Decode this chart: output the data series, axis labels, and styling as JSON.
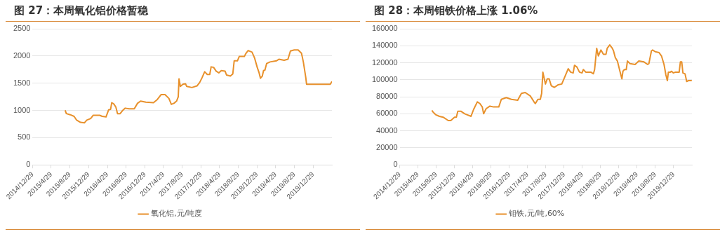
{
  "chart_data": [
    {
      "type": "line",
      "title": "图 27：本周氧化铝价格暂稳",
      "x": [
        "2015-07-29",
        "2015-08-06",
        "2015-08-31",
        "2015-09-25",
        "2015-10-12",
        "2015-11-06",
        "2015-12-01",
        "2015-12-17",
        "2016-01-11",
        "2016-01-28",
        "2016-03-10",
        "2016-03-26",
        "2016-04-20",
        "2016-05-07",
        "2016-05-20",
        "2016-05-27",
        "2016-06-09",
        "2016-06-23",
        "2016-07-04",
        "2016-07-21",
        "2016-08-07",
        "2016-08-23",
        "2016-09-17",
        "2016-10-21",
        "2016-11-11",
        "2016-12-01",
        "2017-01-04",
        "2017-02-23",
        "2017-03-20",
        "2017-04-14",
        "2017-05-09",
        "2017-06-03",
        "2017-06-19",
        "2017-07-06",
        "2017-07-23",
        "2017-08-03",
        "2017-08-08",
        "2017-08-17",
        "2017-09-02",
        "2017-09-19",
        "2017-09-27",
        "2017-10-31",
        "2017-12-03",
        "2017-12-20",
        "2018-01-05",
        "2018-01-22",
        "2018-02-08",
        "2018-02-24",
        "2018-03-05",
        "2018-03-21",
        "2018-04-07",
        "2018-04-24",
        "2018-05-10",
        "2018-06-04",
        "2018-06-13",
        "2018-07-08",
        "2018-07-24",
        "2018-08-02",
        "2018-08-23",
        "2018-09-04",
        "2018-10-07",
        "2018-10-16",
        "2018-11-01",
        "2018-11-26",
        "2018-12-13",
        "2018-12-30",
        "2019-01-10",
        "2019-01-20",
        "2019-02-01",
        "2019-02-09",
        "2019-02-18",
        "2019-03-01",
        "2019-03-23",
        "2019-05-04",
        "2019-05-20",
        "2019-06-23",
        "2019-07-18",
        "2019-08-03",
        "2019-08-28",
        "2019-09-22",
        "2019-10-14",
        "2019-10-26",
        "2019-11-11",
        "2019-11-16",
        "2019-12-23",
        "2020-04-18",
        "2020-04-29"
      ],
      "series": [
        {
          "name": "氧化铝,元/吨度",
          "color": "#e8912c",
          "values": [
            1000,
            940,
            920,
            890,
            820,
            780,
            770,
            820,
            850,
            910,
            910,
            890,
            880,
            1010,
            1020,
            1140,
            1120,
            1060,
            940,
            940,
            1000,
            1040,
            1030,
            1030,
            1130,
            1170,
            1150,
            1140,
            1200,
            1290,
            1290,
            1220,
            1110,
            1130,
            1170,
            1250,
            1580,
            1440,
            1480,
            1490,
            1440,
            1420,
            1450,
            1510,
            1600,
            1710,
            1660,
            1660,
            1800,
            1790,
            1720,
            1690,
            1730,
            1720,
            1650,
            1630,
            1670,
            1910,
            1910,
            1990,
            1990,
            2040,
            2100,
            2070,
            1960,
            1790,
            1700,
            1590,
            1630,
            1730,
            1740,
            1860,
            1890,
            1910,
            1940,
            1920,
            1940,
            2090,
            2110,
            2110,
            2050,
            1890,
            1600,
            1480,
            1480,
            1480,
            1530
          ]
        }
      ],
      "xlim": [
        "2014-12-29",
        "2020-04-29"
      ],
      "xticks": [
        {
          "value": "2014-12-29",
          "label": "2014/12/29"
        },
        {
          "value": "2015-04-29",
          "label": "2015/4/29"
        },
        {
          "value": "2015-08-29",
          "label": "2015/8/29"
        },
        {
          "value": "2015-12-29",
          "label": "2015/12/29"
        },
        {
          "value": "2016-04-29",
          "label": "2016/4/29"
        },
        {
          "value": "2016-08-29",
          "label": "2016/8/29"
        },
        {
          "value": "2016-12-29",
          "label": "2016/12/29"
        },
        {
          "value": "2017-04-29",
          "label": "2017/4/29"
        },
        {
          "value": "2017-08-29",
          "label": "2017/8/29"
        },
        {
          "value": "2017-12-29",
          "label": "2017/12/29"
        },
        {
          "value": "2018-04-29",
          "label": "2018/4/29"
        },
        {
          "value": "2018-08-29",
          "label": "2018/8/29"
        },
        {
          "value": "2018-12-29",
          "label": "2018/12/29"
        },
        {
          "value": "2019-04-29",
          "label": "2019/4/29"
        },
        {
          "value": "2019-08-29",
          "label": "2019/8/29"
        },
        {
          "value": "2019-12-29",
          "label": "2019/12/29"
        }
      ],
      "ylim": [
        0,
        2500
      ],
      "yticks": [
        0,
        500,
        1000,
        1500,
        2000,
        2500
      ],
      "grid": "y",
      "legend": "bottom",
      "marker": "none",
      "line_style": "solid"
    },
    {
      "type": "line",
      "title": "图 28：本周钼铁价格上涨 1.06%",
      "x": [
        "2015-07-31",
        "2015-08-08",
        "2015-08-25",
        "2015-09-19",
        "2015-10-14",
        "2015-11-17",
        "2015-12-04",
        "2015-12-29",
        "2016-01-10",
        "2016-01-20",
        "2016-02-09",
        "2016-03-06",
        "2016-04-17",
        "2016-05-04",
        "2016-05-29",
        "2016-06-15",
        "2016-07-01",
        "2016-07-10",
        "2016-07-27",
        "2016-08-21",
        "2016-09-15",
        "2016-10-19",
        "2016-11-05",
        "2016-12-08",
        "2017-01-11",
        "2017-02-22",
        "2017-03-19",
        "2017-04-13",
        "2017-05-17",
        "2017-06-11",
        "2017-06-20",
        "2017-07-07",
        "2017-07-23",
        "2017-08-01",
        "2017-08-09",
        "2017-08-26",
        "2017-09-07",
        "2017-09-20",
        "2017-10-04",
        "2017-10-24",
        "2017-11-18",
        "2017-12-13",
        "2017-12-30",
        "2018-01-25",
        "2018-02-10",
        "2018-02-27",
        "2018-03-08",
        "2018-03-24",
        "2018-04-10",
        "2018-04-27",
        "2018-05-06",
        "2018-05-22",
        "2018-06-25",
        "2018-07-12",
        "2018-07-20",
        "2018-08-03",
        "2018-08-14",
        "2018-08-31",
        "2018-09-17",
        "2018-10-04",
        "2018-10-12",
        "2018-10-29",
        "2018-11-15",
        "2018-11-23",
        "2018-12-05",
        "2018-12-19",
        "2019-01-05",
        "2019-01-18",
        "2019-01-25",
        "2019-02-04",
        "2019-02-16",
        "2019-02-24",
        "2019-03-13",
        "2019-04-16",
        "2019-05-11",
        "2019-06-14",
        "2019-07-09",
        "2019-07-17",
        "2019-08-03",
        "2019-08-11",
        "2019-08-28",
        "2019-09-22",
        "2019-10-09",
        "2019-10-26",
        "2019-11-07",
        "2019-11-17",
        "2019-11-24",
        "2019-12-07",
        "2019-12-15",
        "2019-12-27",
        "2020-01-10",
        "2020-02-04",
        "2020-02-12",
        "2020-02-21",
        "2020-02-29",
        "2020-03-14",
        "2020-03-25",
        "2020-04-06",
        "2020-04-16",
        "2020-04-28"
      ],
      "series": [
        {
          "name": "钼铁,元/吨,60%",
          "color": "#e8912c",
          "values": [
            64000,
            62000,
            59000,
            57000,
            56000,
            52000,
            52000,
            56000,
            56000,
            63000,
            63000,
            60000,
            57000,
            65000,
            74000,
            72000,
            68000,
            60000,
            66000,
            69000,
            68000,
            68000,
            77000,
            79000,
            77000,
            76000,
            84000,
            85000,
            81000,
            74000,
            72000,
            77000,
            77000,
            84000,
            109000,
            95000,
            101000,
            101000,
            93000,
            91000,
            94000,
            95000,
            102000,
            113000,
            109000,
            108000,
            117000,
            115000,
            109000,
            108000,
            112000,
            109000,
            109000,
            107000,
            112000,
            137000,
            128000,
            135000,
            130000,
            130000,
            137000,
            141000,
            137000,
            134000,
            126000,
            122000,
            110000,
            101000,
            110000,
            112000,
            112000,
            122000,
            119000,
            118000,
            122000,
            121000,
            118000,
            119000,
            134000,
            135000,
            133000,
            132000,
            128000,
            118000,
            106000,
            99000,
            109000,
            109000,
            110000,
            108000,
            109000,
            109000,
            121000,
            121000,
            108000,
            107000,
            98000,
            99000,
            99000,
            99000
          ]
        }
      ],
      "xlim": [
        "2014-12-29",
        "2020-04-29"
      ],
      "xticks": [
        {
          "value": "2014-12-29",
          "label": "2014/12/29"
        },
        {
          "value": "2015-04-29",
          "label": "2015/4/29"
        },
        {
          "value": "2015-08-29",
          "label": "2015/8/29"
        },
        {
          "value": "2015-12-29",
          "label": "2015/12/29"
        },
        {
          "value": "2016-04-29",
          "label": "2016/4/29"
        },
        {
          "value": "2016-08-29",
          "label": "2016/8/29"
        },
        {
          "value": "2016-12-29",
          "label": "2016/12/29"
        },
        {
          "value": "2017-04-29",
          "label": "2017/4/29"
        },
        {
          "value": "2017-08-29",
          "label": "2017/8/29"
        },
        {
          "value": "2017-12-29",
          "label": "2017/12/29"
        },
        {
          "value": "2018-04-29",
          "label": "2018/4/29"
        },
        {
          "value": "2018-08-29",
          "label": "2018/8/29"
        },
        {
          "value": "2018-12-29",
          "label": "2018/12/29"
        },
        {
          "value": "2019-04-29",
          "label": "2019/4/29"
        },
        {
          "value": "2019-08-29",
          "label": "2019/8/29"
        },
        {
          "value": "2019-12-29",
          "label": "2019/12/29"
        }
      ],
      "ylim": [
        0,
        160000
      ],
      "yticks": [
        0,
        20000,
        40000,
        60000,
        80000,
        100000,
        120000,
        140000,
        160000
      ],
      "grid": "y",
      "legend": "bottom",
      "marker": "none",
      "line_style": "solid"
    }
  ]
}
